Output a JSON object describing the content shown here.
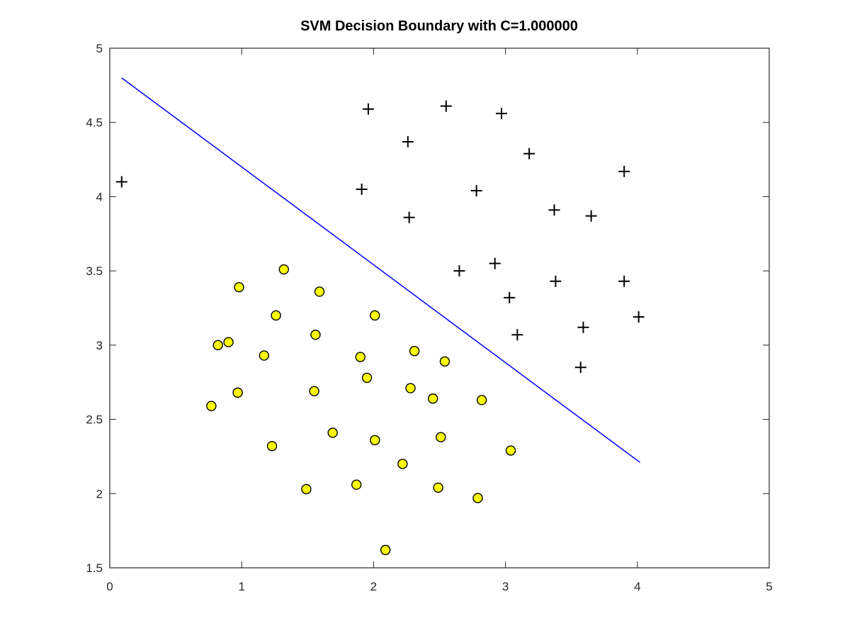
{
  "colors": {
    "background": "#ffffff",
    "axes": "#262626",
    "boundary": "#0000ff",
    "positive_marker": "#000000",
    "negative_fill": "#ffff00",
    "negative_edge": "#000000"
  },
  "chart_data": {
    "type": "scatter",
    "title": "SVM Decision Boundary with C=1.000000",
    "xlabel": "",
    "ylabel": "",
    "xlim": [
      0,
      5
    ],
    "ylim": [
      1.5,
      5
    ],
    "grid": false,
    "xticks": [
      0,
      1,
      2,
      3,
      4,
      5
    ],
    "xtick_labels": [
      "0",
      "1",
      "2",
      "3",
      "4",
      "5"
    ],
    "yticks": [
      1.5,
      2,
      2.5,
      3,
      3.5,
      4,
      4.5,
      5
    ],
    "ytick_labels": [
      "1.5",
      "2",
      "2.5",
      "3",
      "3.5",
      "4",
      "4.5",
      "5"
    ],
    "series": [
      {
        "marker": "plus",
        "color": "#000000",
        "points": [
          [
            0.09,
            4.1
          ],
          [
            1.96,
            4.59
          ],
          [
            2.55,
            4.61
          ],
          [
            2.97,
            4.56
          ],
          [
            2.26,
            4.37
          ],
          [
            3.18,
            4.29
          ],
          [
            3.9,
            4.17
          ],
          [
            1.91,
            4.05
          ],
          [
            2.78,
            4.04
          ],
          [
            3.37,
            3.91
          ],
          [
            3.65,
            3.87
          ],
          [
            2.27,
            3.86
          ],
          [
            2.65,
            3.5
          ],
          [
            2.92,
            3.55
          ],
          [
            3.38,
            3.43
          ],
          [
            3.9,
            3.43
          ],
          [
            3.03,
            3.32
          ],
          [
            4.01,
            3.19
          ],
          [
            3.59,
            3.12
          ],
          [
            3.09,
            3.07
          ],
          [
            3.57,
            2.85
          ]
        ]
      },
      {
        "marker": "circle",
        "color": "#ffff00",
        "points": [
          [
            1.32,
            3.51
          ],
          [
            0.98,
            3.39
          ],
          [
            1.59,
            3.36
          ],
          [
            1.26,
            3.2
          ],
          [
            2.01,
            3.2
          ],
          [
            1.56,
            3.07
          ],
          [
            0.9,
            3.02
          ],
          [
            0.82,
            3.0
          ],
          [
            2.31,
            2.96
          ],
          [
            1.17,
            2.93
          ],
          [
            1.9,
            2.92
          ],
          [
            2.54,
            2.89
          ],
          [
            1.95,
            2.78
          ],
          [
            2.28,
            2.71
          ],
          [
            0.97,
            2.68
          ],
          [
            1.55,
            2.69
          ],
          [
            2.45,
            2.64
          ],
          [
            2.82,
            2.63
          ],
          [
            0.77,
            2.59
          ],
          [
            1.69,
            2.41
          ],
          [
            2.01,
            2.36
          ],
          [
            2.51,
            2.38
          ],
          [
            1.23,
            2.32
          ],
          [
            3.04,
            2.29
          ],
          [
            2.22,
            2.2
          ],
          [
            1.87,
            2.06
          ],
          [
            1.49,
            2.03
          ],
          [
            2.49,
            2.04
          ],
          [
            2.79,
            1.97
          ],
          [
            2.09,
            1.62
          ]
        ]
      }
    ],
    "decision_boundary": [
      [
        0.09,
        4.8
      ],
      [
        4.02,
        2.21
      ]
    ]
  }
}
